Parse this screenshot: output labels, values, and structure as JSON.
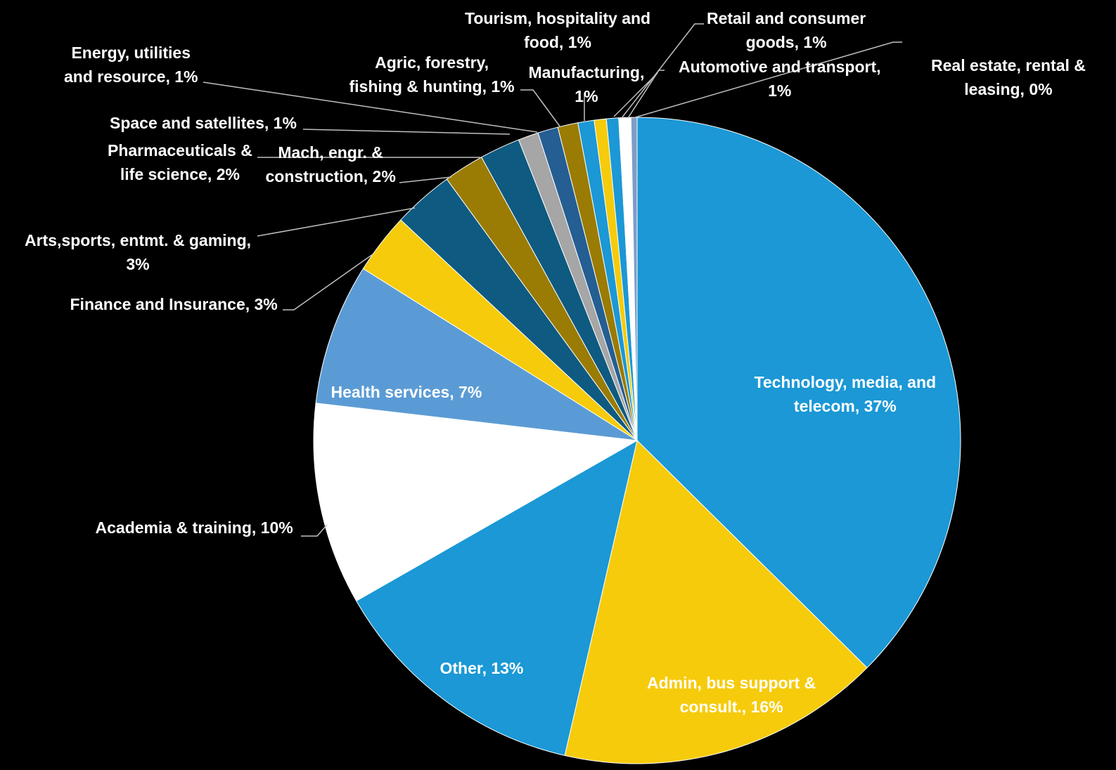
{
  "chart_data": {
    "type": "pie",
    "start_angle_deg": 0,
    "direction": "clockwise",
    "legend": "none",
    "slices": [
      {
        "label": "Technology, media, and\ntelecom, 37%",
        "value": 37,
        "color": "#1B98D5"
      },
      {
        "label": "Admin, bus support &\nconsult., 16%",
        "value": 16,
        "color": "#F6CB0B"
      },
      {
        "label": "Other, 13%",
        "value": 13,
        "color": "#1B98D5"
      },
      {
        "label": "Academia & training, 10%",
        "value": 10,
        "color": "#FFFFFF"
      },
      {
        "label": "Health services, 7%",
        "value": 7,
        "color": "#5B9BD5"
      },
      {
        "label": "Finance and Insurance, 3%",
        "value": 3,
        "color": "#F6CB0B"
      },
      {
        "label": "Arts,sports, entmt. & gaming,\n3%",
        "value": 3,
        "color": "#0F5A80"
      },
      {
        "label": "Mach, engr. &\nconstruction, 2%",
        "value": 2,
        "color": "#9A7B04"
      },
      {
        "label": "Pharmaceuticals &\nlife science, 2%",
        "value": 2,
        "color": "#0F5A80"
      },
      {
        "label": "Space and satellites, 1%",
        "value": 1,
        "color": "#A6A6A6"
      },
      {
        "label": "Energy, utilities\nand resource, 1%",
        "value": 1,
        "color": "#245E92"
      },
      {
        "label": "Agric, forestry,\nfishing & hunting, 1%",
        "value": 1,
        "color": "#9A7B04"
      },
      {
        "label": "Manufacturing,\n1%",
        "value": 0.8,
        "color": "#1B98D5"
      },
      {
        "label": "Tourism, hospitality and\nfood, 1%",
        "value": 0.6,
        "color": "#F6CB0B"
      },
      {
        "label": "Retail and consumer\ngoods, 1%",
        "value": 0.6,
        "color": "#1B98D5"
      },
      {
        "label": "Automotive and transport,\n1%",
        "value": 0.6,
        "color": "#FFFFFF"
      },
      {
        "label": "Real estate, rental &\nleasing, 0%",
        "value": 0.3,
        "color": "#7F9CC6"
      }
    ]
  }
}
